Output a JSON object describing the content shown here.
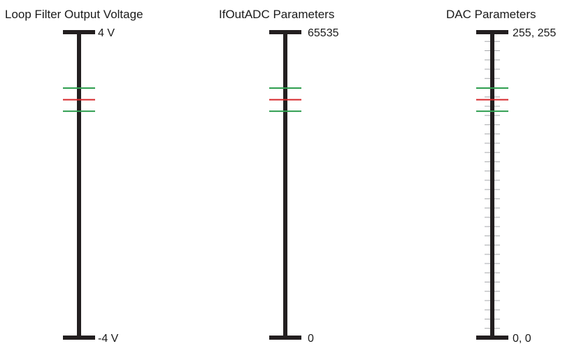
{
  "colors": {
    "axis": "#231f20",
    "outer_marker": "#2e9e4f",
    "center_marker": "#d6282b",
    "minor_tick": "#a7a9ac"
  },
  "scales": [
    {
      "id": "loop-filter",
      "title": "Loop Filter Output Voltage",
      "top_label": "4 V",
      "bottom_label": "-4 V",
      "minor_ticks": 0
    },
    {
      "id": "ifout-adc",
      "title": "IfOutADC Parameters",
      "top_label": "65535",
      "bottom_label": "0",
      "minor_ticks": 0
    },
    {
      "id": "dac",
      "title": "DAC Parameters",
      "top_label": "255, 255",
      "bottom_label": "0, 0",
      "minor_ticks": 32
    }
  ],
  "markers": [
    {
      "name": "upper-limit",
      "color_key": "outer_marker",
      "fraction_from_top": 0.183
    },
    {
      "name": "center",
      "color_key": "center_marker",
      "fraction_from_top": 0.221
    },
    {
      "name": "lower-limit",
      "color_key": "outer_marker",
      "fraction_from_top": 0.259
    }
  ]
}
